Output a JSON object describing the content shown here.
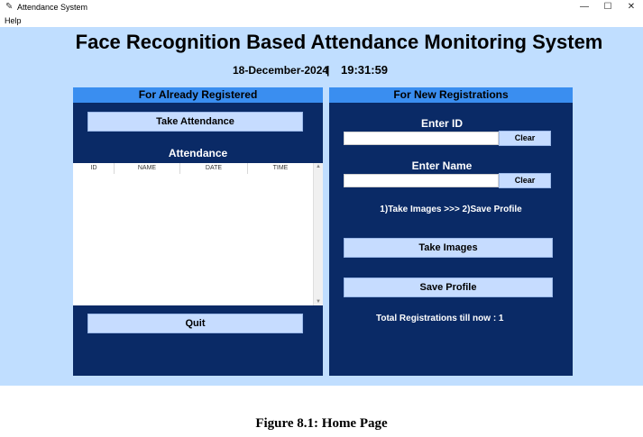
{
  "window": {
    "title": "Attendance System",
    "minimize": "—",
    "maximize": "☐",
    "close": "✕"
  },
  "menu": {
    "help": "Help"
  },
  "main_title": "Face Recognition Based Attendance Monitoring System",
  "date": "18-December-2024",
  "separator": "|",
  "time": "19:31:59",
  "left_panel": {
    "header": "For Already Registered",
    "take_attendance": "Take Attendance",
    "attendance_label": "Attendance",
    "columns": [
      "ID",
      "NAME",
      "DATE",
      "TIME"
    ],
    "quit": "Quit"
  },
  "right_panel": {
    "header": "For New Registrations",
    "enter_id_label": "Enter ID",
    "id_value": "",
    "clear_id": "Clear",
    "enter_name_label": "Enter Name",
    "name_value": "",
    "clear_name": "Clear",
    "steps": "1)Take Images  >>>  2)Save Profile",
    "take_images": "Take Images",
    "save_profile": "Save Profile",
    "total_registrations": "Total Registrations till now  : 1"
  },
  "caption": "Figure 8.1: Home  Page"
}
